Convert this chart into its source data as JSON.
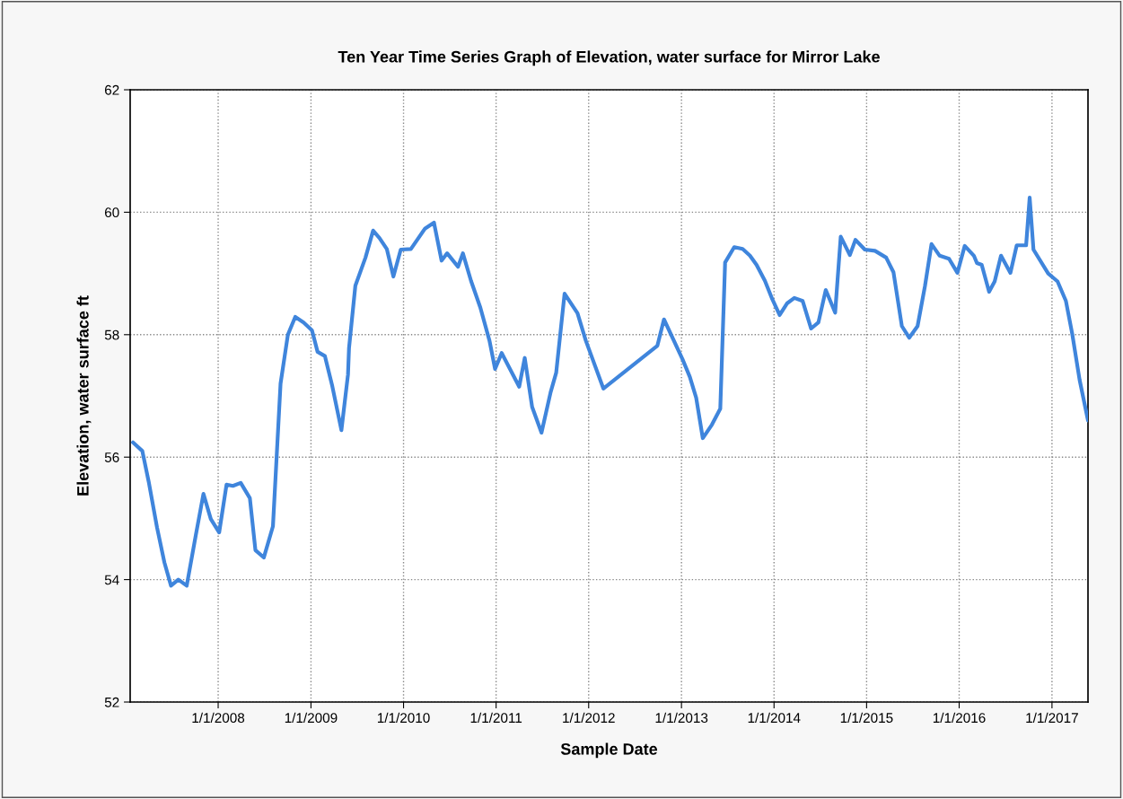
{
  "chart_data": {
    "type": "line",
    "title": "Ten Year Time Series Graph of Elevation, water surface for Mirror Lake",
    "xlabel": "Sample Date",
    "ylabel": "Elevation, water surface ft",
    "x": [
      "2007-01-30",
      "2007-03-08",
      "2007-04-02",
      "2007-05-05",
      "2007-06-03",
      "2007-06-29",
      "2007-07-28",
      "2007-08-30",
      "2007-10-05",
      "2007-11-04",
      "2007-12-03",
      "2008-01-05",
      "2008-02-03",
      "2008-02-28",
      "2008-03-30",
      "2008-05-05",
      "2008-05-27",
      "2008-06-29",
      "2008-08-04",
      "2008-09-03",
      "2008-10-02",
      "2008-10-31",
      "2008-12-03",
      "2009-01-05",
      "2009-01-27",
      "2009-02-25",
      "2009-03-26",
      "2009-05-01",
      "2009-05-27",
      "2009-05-31",
      "2009-06-25",
      "2009-08-04",
      "2009-09-03",
      "2009-09-28",
      "2009-10-27",
      "2009-11-22",
      "2009-12-21",
      "2010-01-30",
      "2010-03-26",
      "2010-05-01",
      "2010-05-31",
      "2010-06-22",
      "2010-08-04",
      "2010-08-23",
      "2010-09-24",
      "2010-10-31",
      "2010-12-06",
      "2010-12-28",
      "2011-01-23",
      "2011-04-02",
      "2011-04-24",
      "2011-05-23",
      "2011-06-29",
      "2011-08-04",
      "2011-08-26",
      "2011-09-28",
      "2011-11-18",
      "2011-12-21",
      "2012-02-28",
      "2012-09-28",
      "2012-10-24",
      "2013-01-05",
      "2013-02-03",
      "2013-02-28",
      "2013-03-26",
      "2013-05-01",
      "2013-06-03",
      "2013-06-22",
      "2013-07-28",
      "2013-08-30",
      "2013-09-28",
      "2013-10-24",
      "2013-11-26",
      "2013-12-25",
      "2014-01-23",
      "2014-02-21",
      "2014-03-22",
      "2014-04-24",
      "2014-05-27",
      "2014-06-25",
      "2014-07-24",
      "2014-08-30",
      "2014-09-21",
      "2014-10-27",
      "2014-11-18",
      "2014-12-25",
      "2015-02-03",
      "2015-03-19",
      "2015-04-17",
      "2015-05-20",
      "2015-06-18",
      "2015-07-21",
      "2015-08-19",
      "2015-09-14",
      "2015-10-16",
      "2015-11-22",
      "2015-12-25",
      "2016-01-23",
      "2016-02-28",
      "2016-03-11",
      "2016-03-30",
      "2016-04-28",
      "2016-05-20",
      "2016-06-14",
      "2016-07-21",
      "2016-08-15",
      "2016-09-21",
      "2016-10-05",
      "2016-10-20",
      "2016-12-17",
      "2017-01-23",
      "2017-02-25",
      "2017-03-22",
      "2017-04-20",
      "2017-05-23"
    ],
    "series": [
      {
        "color": "#3f85dc",
        "values": [
          56.24,
          56.1,
          55.6,
          54.85,
          54.28,
          53.9,
          54.0,
          53.9,
          54.73,
          55.4,
          54.99,
          54.77,
          55.55,
          55.53,
          55.58,
          55.33,
          54.48,
          54.36,
          54.87,
          57.2,
          58.0,
          58.29,
          58.2,
          58.07,
          57.72,
          57.65,
          57.16,
          56.44,
          57.35,
          57.78,
          58.8,
          59.26,
          59.7,
          59.58,
          59.4,
          58.95,
          59.39,
          59.4,
          59.73,
          59.83,
          59.21,
          59.33,
          59.11,
          59.33,
          58.88,
          58.44,
          57.9,
          57.44,
          57.7,
          57.15,
          57.62,
          56.82,
          56.4,
          57.06,
          57.38,
          58.67,
          58.35,
          57.9,
          57.12,
          57.82,
          58.25,
          57.6,
          57.31,
          56.97,
          56.31,
          56.53,
          56.79,
          59.18,
          59.43,
          59.4,
          59.29,
          59.14,
          58.88,
          58.58,
          58.32,
          58.51,
          58.6,
          58.55,
          58.1,
          58.2,
          58.73,
          58.36,
          59.6,
          59.3,
          59.55,
          59.39,
          59.37,
          59.26,
          59.02,
          58.14,
          57.95,
          58.14,
          58.79,
          59.48,
          59.29,
          59.24,
          59.01,
          59.45,
          59.29,
          59.17,
          59.14,
          58.7,
          58.87,
          59.29,
          59.01,
          59.46,
          59.46,
          60.24,
          59.39,
          59.0,
          58.87,
          58.55,
          58.01,
          57.26,
          56.6
        ]
      }
    ],
    "xlim": [
      "2007-01-19",
      "2017-05-23"
    ],
    "xticks": [
      {
        "value": "2008-01-01",
        "label": "1/1/2008"
      },
      {
        "value": "2009-01-01",
        "label": "1/1/2009"
      },
      {
        "value": "2010-01-01",
        "label": "1/1/2010"
      },
      {
        "value": "2011-01-01",
        "label": "1/1/2011"
      },
      {
        "value": "2012-01-01",
        "label": "1/1/2012"
      },
      {
        "value": "2013-01-01",
        "label": "1/1/2013"
      },
      {
        "value": "2014-01-01",
        "label": "1/1/2014"
      },
      {
        "value": "2015-01-01",
        "label": "1/1/2015"
      },
      {
        "value": "2016-01-01",
        "label": "1/1/2016"
      },
      {
        "value": "2017-01-01",
        "label": "1/1/2017"
      }
    ],
    "ylim": [
      52,
      62
    ],
    "yticks": [
      52,
      54,
      56,
      58,
      60,
      62
    ],
    "grid": true,
    "line_style": "solid"
  }
}
